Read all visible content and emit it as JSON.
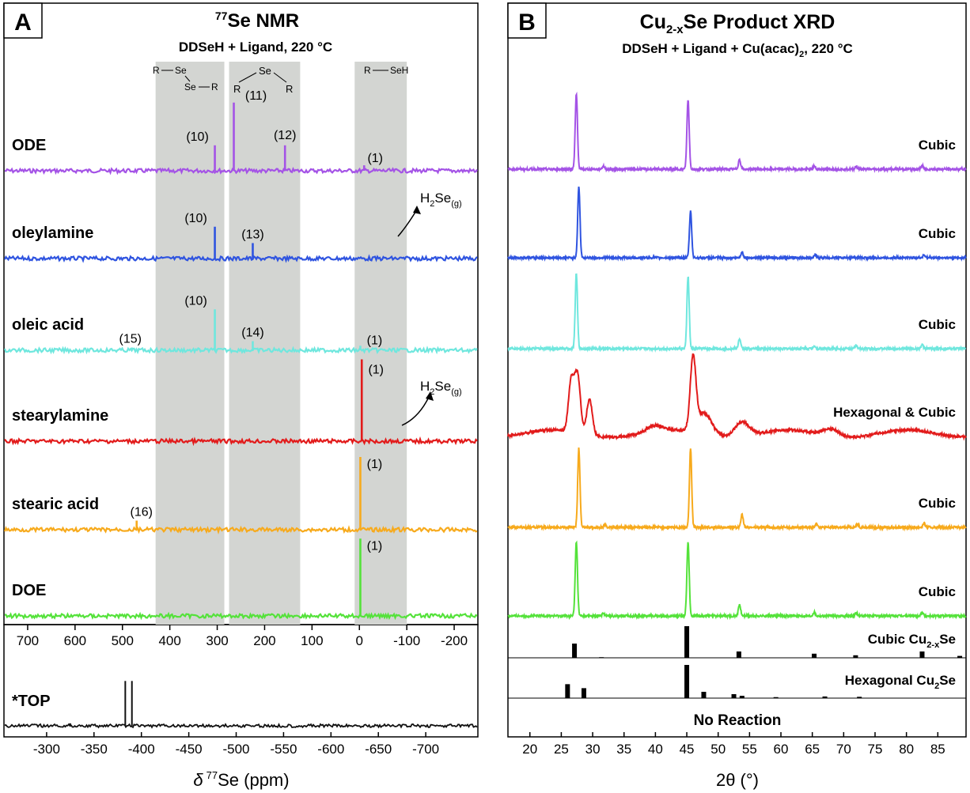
{
  "panel_a": {
    "letter": "A",
    "title_sup": "77",
    "title_main": "Se NMR",
    "subtitle": "DDSeH + Ligand, 220 °C",
    "struct_diselenide": [
      "R",
      "Se",
      "Se",
      "R"
    ],
    "struct_selenide": [
      "Se",
      "R",
      "R"
    ],
    "struct_selenol": [
      "R",
      "SeH"
    ],
    "h2se_label": "H",
    "h2se_sub": "2",
    "h2se_se": "Se",
    "h2se_g": "(g)",
    "xlabel_delta": "δ",
    "xlabel_sup": "77",
    "xlabel_rest": "Se (ppm)"
  },
  "panel_b": {
    "letter": "B",
    "title_pre": "Cu",
    "title_sub": "2-x",
    "title_post": "Se Product XRD",
    "subtitle_pre": "DDSeH + Ligand + Cu(acac)",
    "subtitle_sub": "2",
    "subtitle_post": ", 220 °C",
    "ref_cubic_pre": "Cubic Cu",
    "ref_cubic_sub": "2-x",
    "ref_cubic_post": "Se",
    "ref_hex_pre": "Hexagonal Cu",
    "ref_hex_sub": "2",
    "ref_hex_post": "Se",
    "no_reaction": "No Reaction",
    "xlabel": "2θ (°)"
  },
  "colors": {
    "ODE": "#a453e6",
    "oleylamine": "#2f54e0",
    "oleic acid": "#6fe7de",
    "stearylamine": "#e21b1b",
    "stearic acid": "#f7aa1c",
    "DOE": "#54e23a",
    "TOP": "#111111",
    "shade": "#d3d5d2"
  },
  "chart_data": [
    {
      "type": "line",
      "title": "77Se NMR",
      "subtitle": "DDSeH + Ligand, 220 °C",
      "xlabel": "",
      "xlim": [
        750,
        -250
      ],
      "xticks": [
        700,
        600,
        500,
        400,
        300,
        200,
        100,
        0,
        -100,
        -200
      ],
      "shaded_regions": [
        [
          430,
          285
        ],
        [
          275,
          125
        ],
        [
          10,
          -100
        ]
      ],
      "series": [
        {
          "name": "ODE",
          "peaks": [
            {
              "x": 305,
              "h": 0.28,
              "label": "(10)"
            },
            {
              "x": 265,
              "h": 0.75,
              "label": "(11)"
            },
            {
              "x": 157,
              "h": 0.28,
              "label": "(12)"
            },
            {
              "x": -10,
              "h": 0.06,
              "label": "(1)"
            }
          ]
        },
        {
          "name": "oleylamine",
          "peaks": [
            {
              "x": 305,
              "h": 0.35,
              "label": "(10)"
            },
            {
              "x": 225,
              "h": 0.17,
              "label": "(13)"
            }
          ],
          "note": "H2Se(g)"
        },
        {
          "name": "oleic acid",
          "peaks": [
            {
              "x": 480,
              "h": 0.03,
              "label": "(15)"
            },
            {
              "x": 305,
              "h": 0.45,
              "label": "(10)"
            },
            {
              "x": 225,
              "h": 0.1,
              "label": "(14)"
            },
            {
              "x": -2,
              "h": 0.05,
              "label": "(1)"
            }
          ]
        },
        {
          "name": "stearylamine",
          "peaks": [
            {
              "x": -5,
              "h": 0.9,
              "label": "(1)"
            }
          ],
          "note": "H2Se(g)"
        },
        {
          "name": "stearic acid",
          "peaks": [
            {
              "x": 470,
              "h": 0.1,
              "label": "(16)"
            },
            {
              "x": -2,
              "h": 0.8,
              "label": "(1)"
            }
          ]
        },
        {
          "name": "DOE",
          "peaks": [
            {
              "x": -2,
              "h": 0.85,
              "label": "(1)"
            }
          ]
        }
      ]
    },
    {
      "type": "line",
      "title": "*TOP",
      "xlabel": "δ 77Se (ppm)",
      "xlim": [
        -255,
        -755
      ],
      "xticks": [
        -300,
        -350,
        -400,
        -450,
        -500,
        -550,
        -600,
        -650,
        -700
      ],
      "series": [
        {
          "name": "*TOP",
          "peaks": [
            {
              "x": -383,
              "h": 0.9
            },
            {
              "x": -390,
              "h": 0.9
            },
            {
              "x": -325,
              "h": 0.05
            }
          ]
        }
      ]
    },
    {
      "type": "line",
      "title": "Cu2-xSe Product XRD",
      "subtitle": "DDSeH + Ligand + Cu(acac)2, 220 °C",
      "xlabel": "2θ (°)",
      "xlim": [
        16.5,
        89.5
      ],
      "xticks": [
        20,
        25,
        30,
        35,
        40,
        45,
        50,
        55,
        60,
        65,
        70,
        75,
        80,
        85
      ],
      "series": [
        {
          "name": "ODE",
          "phase": "Cubic",
          "peaks": [
            {
              "x": 27.4,
              "h": 1.0
            },
            {
              "x": 31.7,
              "h": 0.04
            },
            {
              "x": 45.2,
              "h": 0.92
            },
            {
              "x": 53.4,
              "h": 0.13
            },
            {
              "x": 65.3,
              "h": 0.04
            },
            {
              "x": 72.0,
              "h": 0.04
            },
            {
              "x": 82.5,
              "h": 0.05
            }
          ]
        },
        {
          "name": "oleylamine",
          "phase": "Cubic",
          "peaks": [
            {
              "x": 27.8,
              "h": 1.0
            },
            {
              "x": 45.6,
              "h": 0.65
            },
            {
              "x": 53.8,
              "h": 0.08
            },
            {
              "x": 65.5,
              "h": 0.04
            },
            {
              "x": 82.8,
              "h": 0.04
            }
          ]
        },
        {
          "name": "oleic acid",
          "phase": "Cubic",
          "peaks": [
            {
              "x": 27.4,
              "h": 1.0
            },
            {
              "x": 45.2,
              "h": 0.96
            },
            {
              "x": 53.4,
              "h": 0.13
            },
            {
              "x": 65.3,
              "h": 0.04
            },
            {
              "x": 72.0,
              "h": 0.04
            },
            {
              "x": 82.5,
              "h": 0.05
            }
          ]
        },
        {
          "name": "stearylamine",
          "phase": "Hexagonal & Cubic",
          "peaks": [
            {
              "x": 26.6,
              "h": 0.72
            },
            {
              "x": 27.6,
              "h": 0.8
            },
            {
              "x": 29.5,
              "h": 0.5
            },
            {
              "x": 46.0,
              "h": 1.0
            },
            {
              "x": 47.8,
              "h": 0.3
            },
            {
              "x": 53.8,
              "h": 0.2
            },
            {
              "x": 39.8,
              "h": 0.08
            },
            {
              "x": 68.0,
              "h": 0.1
            }
          ]
        },
        {
          "name": "stearic acid",
          "phase": "Cubic",
          "peaks": [
            {
              "x": 27.8,
              "h": 1.0
            },
            {
              "x": 32.0,
              "h": 0.03
            },
            {
              "x": 45.6,
              "h": 1.0
            },
            {
              "x": 53.8,
              "h": 0.17
            },
            {
              "x": 65.7,
              "h": 0.05
            },
            {
              "x": 72.2,
              "h": 0.04
            },
            {
              "x": 82.8,
              "h": 0.05
            }
          ]
        },
        {
          "name": "DOE",
          "phase": "Cubic",
          "peaks": [
            {
              "x": 27.4,
              "h": 1.0
            },
            {
              "x": 31.7,
              "h": 0.04
            },
            {
              "x": 45.2,
              "h": 1.0
            },
            {
              "x": 53.4,
              "h": 0.15
            },
            {
              "x": 65.3,
              "h": 0.05
            },
            {
              "x": 72.0,
              "h": 0.04
            },
            {
              "x": 82.5,
              "h": 0.05
            }
          ]
        }
      ],
      "references": [
        {
          "name": "Cubic Cu2-xSe",
          "sticks": [
            {
              "x": 27.1,
              "h": 0.45
            },
            {
              "x": 31.4,
              "h": 0.02
            },
            {
              "x": 45.0,
              "h": 1.0
            },
            {
              "x": 53.3,
              "h": 0.2
            },
            {
              "x": 65.3,
              "h": 0.13
            },
            {
              "x": 71.9,
              "h": 0.08
            },
            {
              "x": 82.5,
              "h": 0.2
            },
            {
              "x": 88.5,
              "h": 0.06
            }
          ]
        },
        {
          "name": "Hexagonal Cu2Se",
          "sticks": [
            {
              "x": 26.0,
              "h": 0.42
            },
            {
              "x": 28.6,
              "h": 0.3
            },
            {
              "x": 45.0,
              "h": 1.0
            },
            {
              "x": 47.7,
              "h": 0.19
            },
            {
              "x": 52.5,
              "h": 0.12
            },
            {
              "x": 53.8,
              "h": 0.07
            },
            {
              "x": 59.2,
              "h": 0.03
            },
            {
              "x": 67.0,
              "h": 0.05
            },
            {
              "x": 72.5,
              "h": 0.04
            }
          ]
        },
        {
          "name": "No Reaction",
          "sticks": []
        }
      ]
    }
  ]
}
